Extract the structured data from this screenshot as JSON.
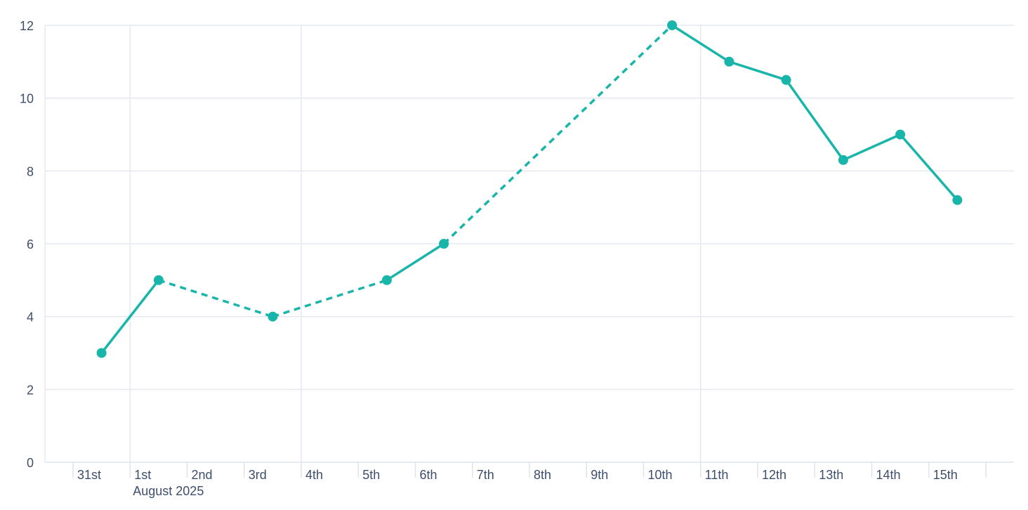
{
  "chart_data": {
    "type": "line",
    "title": "",
    "xlabel": "",
    "ylabel": "",
    "x_axis": {
      "unit": "day",
      "tick_labels": [
        "31st",
        "1st",
        "2nd",
        "3rd",
        "4th",
        "5th",
        "6th",
        "7th",
        "8th",
        "9th",
        "10th",
        "11th",
        "12th",
        "13th",
        "14th",
        "15th"
      ],
      "month_label": "August 2025",
      "month_label_under": "1st",
      "extra_unlabeled_end_tick": true,
      "vertical_gridlines_at": [
        "1st",
        "4th",
        "11th"
      ]
    },
    "y_axis": {
      "ticks": [
        0,
        2,
        4,
        6,
        8,
        10,
        12
      ],
      "min": 0,
      "max": 12
    },
    "legend": false,
    "grid": true,
    "series": [
      {
        "name": "series-1",
        "color": "#19b5aa",
        "marker": "circle",
        "points": [
          {
            "x": "31st",
            "y": 3
          },
          {
            "x": "1st",
            "y": 5
          },
          {
            "x": "3rd",
            "y": 4
          },
          {
            "x": "5th",
            "y": 5
          },
          {
            "x": "6th",
            "y": 6
          },
          {
            "x": "10th",
            "y": 12
          },
          {
            "x": "11th",
            "y": 11
          },
          {
            "x": "12th",
            "y": 10.5
          },
          {
            "x": "13th",
            "y": 8.3
          },
          {
            "x": "14th",
            "y": 9
          },
          {
            "x": "15th",
            "y": 7.2
          }
        ],
        "segments": [
          {
            "from": "31st",
            "to": "1st",
            "style": "solid"
          },
          {
            "from": "1st",
            "to": "3rd",
            "style": "dashed"
          },
          {
            "from": "3rd",
            "to": "5th",
            "style": "dashed"
          },
          {
            "from": "5th",
            "to": "6th",
            "style": "solid"
          },
          {
            "from": "6th",
            "to": "10th",
            "style": "dashed"
          },
          {
            "from": "10th",
            "to": "15th",
            "style": "solid"
          }
        ]
      }
    ]
  },
  "colors": {
    "line": "#19b5aa",
    "grid": "#e5e8f2",
    "axis": "#dfe3ee",
    "label": "#3f4e6c",
    "background": "#ffffff"
  }
}
